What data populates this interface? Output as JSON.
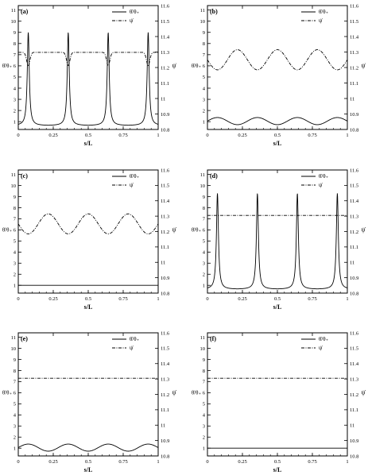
{
  "figure": {
    "legend": {
      "solid_label": "θ̇/θ₊",
      "dashdot_label": "ψ̇"
    },
    "y_left_label": "θ̇/θ₊",
    "y_right_label": "ψ̇",
    "x_label": "s/L"
  },
  "chart_data": [
    {
      "type": "line",
      "panel": "(a)",
      "xlim": [
        0,
        1
      ],
      "ylim_left": [
        0.3,
        11.4
      ],
      "ylim_right": [
        10.8,
        11.6
      ],
      "x_ticks": [
        "0",
        "0.25",
        "0.5",
        "0.75",
        "1"
      ],
      "left_ticks": [
        "1",
        "2",
        "3",
        "4",
        "5",
        "6",
        "7",
        "8",
        "9",
        "10",
        "11"
      ],
      "right_ticks": [
        "10.8",
        "10.9",
        "11",
        "11.1",
        "11.2",
        "11.3",
        "11.4",
        "11.5",
        "11.6"
      ],
      "series": [
        {
          "name": "θ̇/θ₊",
          "axis": "left",
          "style": "solid",
          "profile": "peaks",
          "base": 0.65,
          "amp": 8.35,
          "period": 0.2857,
          "phase": 0.0714
        },
        {
          "name": "ψ̇",
          "axis": "right",
          "style": "dashdot",
          "profile": "dips",
          "base": 11.298,
          "depth": 0.085,
          "period": 0.2857,
          "phase": 0.0714
        }
      ]
    },
    {
      "type": "line",
      "panel": "(b)",
      "xlim": [
        0,
        1
      ],
      "ylim_left": [
        0.3,
        11.4
      ],
      "ylim_right": [
        10.8,
        11.6
      ],
      "x_ticks": [
        "0",
        "0.25",
        "0.5",
        "0.75",
        "1"
      ],
      "left_ticks": [
        "1",
        "2",
        "3",
        "4",
        "5",
        "6",
        "7",
        "8",
        "9",
        "10",
        "11"
      ],
      "right_ticks": [
        "10.8",
        "10.9",
        "11",
        "11.1",
        "11.2",
        "11.3",
        "11.4",
        "11.5",
        "11.6"
      ],
      "series": [
        {
          "name": "θ̇/θ₊",
          "axis": "left",
          "style": "solid",
          "profile": "cos",
          "mean": 1.05,
          "amp": 0.32,
          "period": 0.2857,
          "phase": 0.0714
        },
        {
          "name": "ψ̇",
          "axis": "right",
          "style": "dashdot",
          "profile": "cos",
          "mean": 11.25,
          "amp": 0.065,
          "period": 0.2857,
          "phase": 0.2143
        }
      ]
    },
    {
      "type": "line",
      "panel": "(c)",
      "xlim": [
        0,
        1
      ],
      "ylim_left": [
        0.3,
        11.4
      ],
      "ylim_right": [
        10.8,
        11.6
      ],
      "x_ticks": [
        "0",
        "0.25",
        "0.5",
        "0.75",
        "1"
      ],
      "left_ticks": [
        "1",
        "2",
        "3",
        "4",
        "5",
        "6",
        "7",
        "8",
        "9",
        "10",
        "11"
      ],
      "right_ticks": [
        "10.8",
        "10.9",
        "11",
        "11.1",
        "11.2",
        "11.3",
        "11.4",
        "11.5",
        "11.6"
      ],
      "series": [
        {
          "name": "θ̇/θ₊",
          "axis": "left",
          "style": "solid",
          "profile": "cos",
          "mean": 1.0,
          "amp": 0.0,
          "period": 0.2857,
          "phase": 0.0
        },
        {
          "name": "ψ̇",
          "axis": "right",
          "style": "dashdot",
          "profile": "cos",
          "mean": 11.25,
          "amp": 0.065,
          "period": 0.2857,
          "phase": 0.2143
        }
      ]
    },
    {
      "type": "line",
      "panel": "(d)",
      "xlim": [
        0,
        1
      ],
      "ylim_left": [
        0.3,
        11.4
      ],
      "ylim_right": [
        10.8,
        11.6
      ],
      "x_ticks": [
        "0",
        "0.25",
        "0.5",
        "0.75",
        "1"
      ],
      "left_ticks": [
        "1",
        "2",
        "3",
        "4",
        "5",
        "6",
        "7",
        "8",
        "9",
        "10",
        "11"
      ],
      "right_ticks": [
        "10.8",
        "10.9",
        "11",
        "11.1",
        "11.2",
        "11.3",
        "11.4",
        "11.5",
        "11.6"
      ],
      "series": [
        {
          "name": "θ̇/θ₊",
          "axis": "left",
          "style": "solid",
          "profile": "peaks",
          "base": 0.65,
          "amp": 8.65,
          "period": 0.2857,
          "phase": 0.0714
        },
        {
          "name": "ψ̇",
          "axis": "right",
          "style": "dashdot",
          "profile": "cos",
          "mean": 11.305,
          "amp": 0.0,
          "period": 0.2857,
          "phase": 0.0
        }
      ]
    },
    {
      "type": "line",
      "panel": "(e)",
      "xlim": [
        0,
        1
      ],
      "ylim_left": [
        0.3,
        11.4
      ],
      "ylim_right": [
        10.8,
        11.6
      ],
      "x_ticks": [
        "0",
        "0.25",
        "0.5",
        "0.75",
        "1"
      ],
      "left_ticks": [
        "1",
        "2",
        "3",
        "4",
        "5",
        "6",
        "7",
        "8",
        "9",
        "10",
        "11"
      ],
      "right_ticks": [
        "10.8",
        "10.9",
        "11",
        "11.1",
        "11.2",
        "11.3",
        "11.4",
        "11.5",
        "11.6"
      ],
      "series": [
        {
          "name": "θ̇/θ₊",
          "axis": "left",
          "style": "solid",
          "profile": "cos",
          "mean": 1.05,
          "amp": 0.32,
          "period": 0.2857,
          "phase": 0.0714
        },
        {
          "name": "ψ̇",
          "axis": "right",
          "style": "dashdot",
          "profile": "cos",
          "mean": 11.305,
          "amp": 0.0,
          "period": 0.2857,
          "phase": 0.0
        }
      ]
    },
    {
      "type": "line",
      "panel": "(f)",
      "xlim": [
        0,
        1
      ],
      "ylim_left": [
        0.3,
        11.4
      ],
      "ylim_right": [
        10.8,
        11.6
      ],
      "x_ticks": [
        "0",
        "0.25",
        "0.5",
        "0.75",
        "1"
      ],
      "left_ticks": [
        "1",
        "2",
        "3",
        "4",
        "5",
        "6",
        "7",
        "8",
        "9",
        "10",
        "11"
      ],
      "right_ticks": [
        "10.8",
        "10.9",
        "11",
        "11.1",
        "11.2",
        "11.3",
        "11.4",
        "11.5",
        "11.6"
      ],
      "series": [
        {
          "name": "θ̇/θ₊",
          "axis": "left",
          "style": "solid",
          "profile": "cos",
          "mean": 1.0,
          "amp": 0.0,
          "period": 0.2857,
          "phase": 0.0
        },
        {
          "name": "ψ̇",
          "axis": "right",
          "style": "dashdot",
          "profile": "cos",
          "mean": 11.305,
          "amp": 0.0,
          "period": 0.2857,
          "phase": 0.0
        }
      ]
    }
  ]
}
